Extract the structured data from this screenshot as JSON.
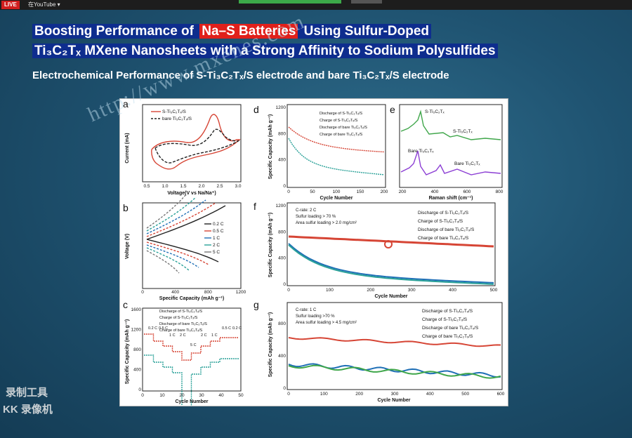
{
  "topbar": {
    "live_label": "LIVE",
    "menu_label": "在YouTube ▾"
  },
  "slide": {
    "title_line1_part1": "Boosting Performance of ",
    "title_line1_highlight": "Na–S Batteries",
    "title_line1_part2": " Using Sulfur-Doped",
    "title_line2": "Ti₃C₂Tₓ MXene Nanosheets with a Strong Affinity to Sodium Polysulfides",
    "subtitle": "Electrochemical Performance of S-Ti₃C₂Tₓ/S electrode and bare Ti₃C₂Tₓ/S electrode"
  },
  "watermark": "http://www.mxenes.com",
  "recorder": {
    "line1": "录制工具",
    "line2": "KK 录像机"
  },
  "colors": {
    "red": "#d64535",
    "blue": "#1f6fb6",
    "teal": "#2aa198",
    "green": "#3fa64a",
    "purple": "#8c3fd4"
  },
  "panels": {
    "a": {
      "label": "a",
      "xlabel": "Voltage(V vs Na/Na⁺)",
      "ylabel": "Current (mA)",
      "legend": [
        "S-Ti₃C₂Tₓ/S",
        "bare Ti₃C₂Tₓ/S"
      ],
      "xticks": [
        "0.5",
        "1.0",
        "1.5",
        "2.0",
        "2.5",
        "3.0"
      ]
    },
    "b": {
      "label": "b",
      "xlabel": "Specific Capacity (mAh g⁻¹)",
      "ylabel": "Voltage (V)",
      "xticks": [
        "0",
        "400",
        "800",
        "1200"
      ],
      "legend": [
        "0.2 C",
        "0.5 C",
        "1 C",
        "2 C",
        "5 C"
      ]
    },
    "c": {
      "label": "c",
      "xlabel": "Cycle Number",
      "ylabel": "Specific Capacity (mAh g⁻¹)",
      "xticks": [
        "0",
        "10",
        "20",
        "30",
        "40",
        "50"
      ],
      "yticks": [
        "0",
        "400",
        "800",
        "1200",
        "1600"
      ],
      "legend": [
        "Discharge of S-Ti₃C₂Tₓ/S",
        "Charge of S-Ti₃C₂Tₓ/S",
        "Discharge of bare Ti₃C₂Tₓ/S",
        "Charge of bare Ti₃C₂Tₓ/S"
      ],
      "rates": [
        "0.2 C",
        "0.5 C",
        "1 C",
        "2 C",
        "5 C",
        "2 C",
        "1 C",
        "0.5 C",
        "0.2 C"
      ]
    },
    "d": {
      "label": "d",
      "xlabel": "Cycle Number",
      "ylabel": "Specific Capacity (mAh g⁻¹)",
      "xticks": [
        "0",
        "50",
        "100",
        "150",
        "200"
      ],
      "yticks": [
        "0",
        "400",
        "800",
        "1200"
      ],
      "legend": [
        "Discharge of S-Ti₃C₂Tₓ/S",
        "Charge of S-Ti₃C₂Tₓ/S",
        "Discharge of bare Ti₃C₂Tₓ/S",
        "Charge of bare Ti₃C₂Tₓ/S"
      ]
    },
    "e": {
      "label": "e",
      "xlabel": "Raman shift (cm⁻¹)",
      "xticks": [
        "200",
        "400",
        "600",
        "800"
      ],
      "top_label": "S-Ti₃C₂Tₓ",
      "bottom_label": "Bare Ti₃C₂Tₓ"
    },
    "f": {
      "label": "f",
      "xlabel": "Cycle Number",
      "ylabel": "Specific Capacity (mAh g⁻¹)",
      "xticks": [
        "0",
        "100",
        "200",
        "300",
        "400",
        "500"
      ],
      "yticks": [
        "0",
        "400",
        "800",
        "1200"
      ],
      "conditions": [
        "C-rate: 2 C",
        "Sulfur loading > 70 %",
        "Area sulfur loading > 2.0 mg/cm²"
      ],
      "legend": [
        "Discharge of S-Ti₃C₂Tₓ/S",
        "Charge of S-Ti₃C₂Tₓ/S",
        "Discharge of bare Ti₃C₂Tₓ/S",
        "Charge of bare Ti₃C₂Tₓ/S"
      ]
    },
    "g": {
      "label": "g",
      "xlabel": "Cycle Number",
      "ylabel": "Specific Capacity (mAh g⁻¹)",
      "xticks": [
        "0",
        "100",
        "200",
        "300",
        "400",
        "500",
        "600"
      ],
      "yticks": [
        "0",
        "400",
        "800"
      ],
      "conditions": [
        "C-rate: 1 C",
        "Sulfur loading >70 %",
        "Area sulfur loading > 4.5 mg/cm²"
      ],
      "legend": [
        "Discharge of S-Ti₃C₂Tₓ/S",
        "Charge of S-Ti₃C₂Tₓ/S",
        "Discharge of bare Ti₃C₂Tₓ/S",
        "Charge of bare Ti₃C₂Tₓ/S"
      ]
    }
  }
}
